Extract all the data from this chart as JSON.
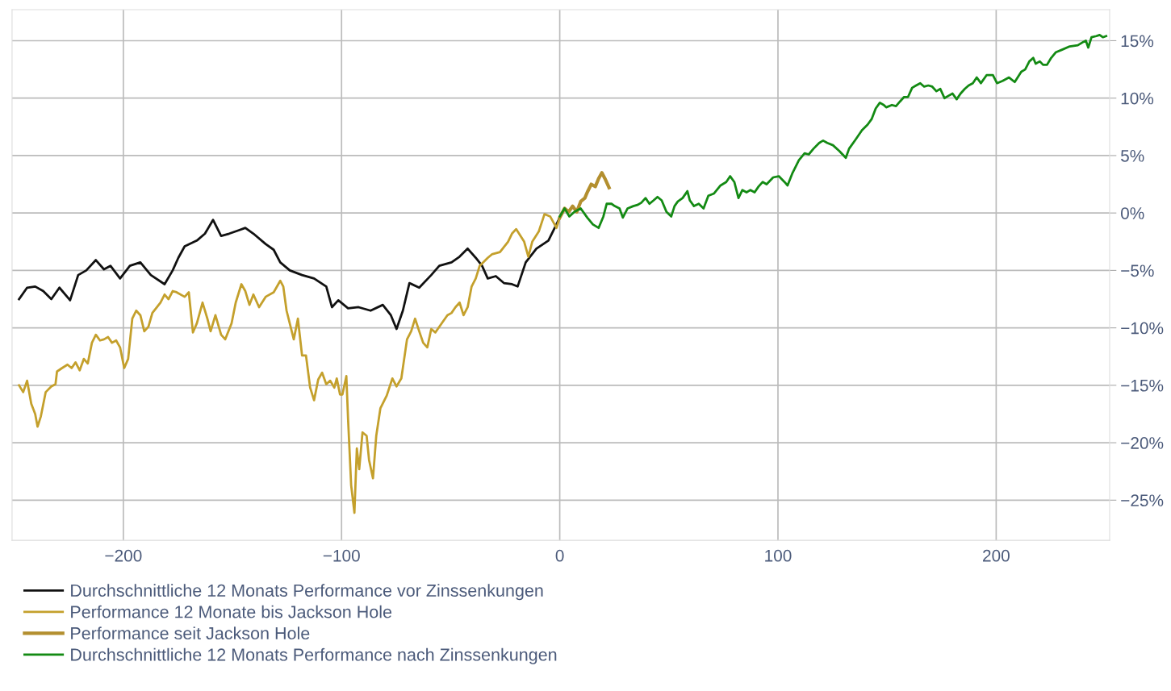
{
  "chart_data": {
    "type": "line",
    "series": [
      {
        "name": "Durchschnittliche 12 Monats Performance vor Zinssenkungen",
        "color": "#111111",
        "x": [
          -247.8,
          -244.1,
          -240.4,
          -236.7,
          -233,
          -229.3,
          -224.4,
          -220.7,
          -217,
          -212.6,
          -208.9,
          -205.9,
          -201.5,
          -197,
          -192.2,
          -187.4,
          -181.1,
          -177.4,
          -174.8,
          -171.9,
          -166.3,
          -162.6,
          -158.9,
          -155.2,
          -151.5,
          -147,
          -144.1,
          -140.4,
          -134.8,
          -131.1,
          -128.1,
          -123.7,
          -118.1,
          -112.6,
          -107,
          -104.4,
          -101.5,
          -97,
          -92.2,
          -86.7,
          -81.1,
          -77.4,
          -74.8,
          -71.9,
          -68.9,
          -64.4,
          -58.9,
          -55.2,
          -49.6,
          -45.9,
          -42.2,
          -38.5,
          -35.6,
          -33,
          -29.3,
          -25.6,
          -21.9,
          -19.3,
          -15.6,
          -10.7,
          -5.2,
          0
        ],
        "values": [
          -7.5,
          -6.5,
          -6.4,
          -6.8,
          -7.5,
          -6.5,
          -7.6,
          -5.4,
          -5.0,
          -4.1,
          -4.9,
          -4.6,
          -5.7,
          -4.6,
          -4.3,
          -5.4,
          -6.2,
          -5.0,
          -3.9,
          -2.9,
          -2.4,
          -1.8,
          -0.6,
          -2.0,
          -1.8,
          -1.5,
          -1.3,
          -1.8,
          -2.7,
          -3.2,
          -4.3,
          -5.0,
          -5.4,
          -5.7,
          -6.4,
          -8.2,
          -7.6,
          -8.3,
          -8.2,
          -8.5,
          -8.0,
          -8.9,
          -10.1,
          -8.5,
          -6.1,
          -6.5,
          -5.4,
          -4.6,
          -4.3,
          -3.8,
          -3.1,
          -3.9,
          -4.6,
          -5.7,
          -5.5,
          -6.1,
          -6.2,
          -6.4,
          -4.3,
          -3.1,
          -2.4,
          -0.4
        ]
      },
      {
        "name": "Performance 12 Monate bis Jackson Hole",
        "color": "#c4a02c",
        "x": [
          -247.8,
          -245.9,
          -244.1,
          -242.2,
          -240.4,
          -239.3,
          -237.8,
          -235.6,
          -233,
          -231.1,
          -230.4,
          -228.1,
          -225.6,
          -223.7,
          -221.9,
          -220,
          -218.1,
          -216.3,
          -214.4,
          -212.6,
          -210.7,
          -208.9,
          -207,
          -205.2,
          -203.3,
          -201.5,
          -199.6,
          -197.8,
          -195.9,
          -194.1,
          -192.2,
          -190.4,
          -188.5,
          -186.7,
          -183,
          -181.1,
          -179.3,
          -177.4,
          -175.6,
          -171.9,
          -170,
          -168.1,
          -166.3,
          -163.7,
          -161.5,
          -160,
          -157.8,
          -155.2,
          -153.3,
          -150.4,
          -148.5,
          -145.9,
          -144.1,
          -142.2,
          -140.4,
          -137.8,
          -134.8,
          -131.1,
          -128.1,
          -126.7,
          -125.2,
          -121.9,
          -120,
          -118.1,
          -116.3,
          -114.4,
          -112.6,
          -110.7,
          -108.9,
          -107,
          -105.2,
          -103.3,
          -102.2,
          -100.7,
          -99.6,
          -97.8,
          -97,
          -95.6,
          -94.1,
          -93,
          -91.9,
          -90.4,
          -88.5,
          -87.4,
          -85.6,
          -84.1,
          -82.2,
          -79.3,
          -76.7,
          -74.8,
          -72.6,
          -70,
          -68.1,
          -66.3,
          -64.4,
          -62.6,
          -60.7,
          -58.9,
          -57,
          -54.1,
          -51.5,
          -49.6,
          -47.8,
          -45.9,
          -44.1,
          -42.2,
          -40.4,
          -38.5,
          -36.7,
          -33,
          -31.1,
          -27.4,
          -23.7,
          -21.9,
          -20,
          -16.3,
          -14.4,
          -12.6,
          -9.6,
          -7,
          -4.4,
          -1.5,
          0
        ],
        "values": [
          -15.0,
          -15.6,
          -14.6,
          -16.6,
          -17.5,
          -18.6,
          -17.7,
          -15.6,
          -15.1,
          -14.9,
          -13.8,
          -13.5,
          -13.2,
          -13.5,
          -13.0,
          -13.7,
          -12.7,
          -13.1,
          -11.3,
          -10.6,
          -11.1,
          -11.0,
          -10.8,
          -11.3,
          -11.1,
          -11.7,
          -13.5,
          -12.7,
          -9.2,
          -8.5,
          -8.9,
          -10.3,
          -9.9,
          -8.7,
          -7.8,
          -7.1,
          -7.5,
          -6.8,
          -6.9,
          -7.3,
          -6.9,
          -10.4,
          -9.6,
          -7.8,
          -9.2,
          -10.3,
          -8.9,
          -10.6,
          -11.0,
          -9.6,
          -7.8,
          -6.2,
          -6.8,
          -8.0,
          -7.1,
          -8.2,
          -7.3,
          -6.9,
          -5.9,
          -6.4,
          -8.5,
          -11.0,
          -9.2,
          -12.4,
          -12.4,
          -15.2,
          -16.3,
          -14.5,
          -13.9,
          -14.9,
          -14.6,
          -15.2,
          -14.4,
          -15.8,
          -15.8,
          -14.2,
          -18.0,
          -23.7,
          -26.1,
          -20.5,
          -22.3,
          -19.1,
          -19.4,
          -21.5,
          -23.1,
          -19.4,
          -17.0,
          -15.9,
          -14.4,
          -15.1,
          -14.4,
          -11.0,
          -10.3,
          -9.2,
          -10.3,
          -11.3,
          -11.7,
          -10.1,
          -10.4,
          -9.6,
          -8.9,
          -8.7,
          -8.2,
          -7.8,
          -8.9,
          -8.2,
          -6.4,
          -5.7,
          -4.6,
          -3.9,
          -3.6,
          -3.4,
          -2.5,
          -1.8,
          -1.4,
          -2.5,
          -3.8,
          -2.5,
          -1.6,
          -0.1,
          -0.3,
          -1.3,
          -0.4
        ]
      },
      {
        "name": "Performance seit Jackson Hole",
        "color": "#b38f2f",
        "x": [
          0,
          2.2,
          4.1,
          5.9,
          7.8,
          9.6,
          11.5,
          12.6,
          14.4,
          16.3,
          17.8,
          19.3,
          20.7,
          22.6
        ],
        "values": [
          -0.4,
          0.4,
          0.1,
          0.6,
          0.1,
          1.0,
          1.3,
          1.8,
          2.5,
          2.3,
          3.0,
          3.5,
          3.0,
          2.2
        ]
      },
      {
        "name": "Durchschnittliche 12 Monats Performance nach Zinssenkungen",
        "color": "#138a13",
        "x": [
          0,
          2.2,
          4.4,
          6.7,
          9.6,
          12.6,
          15.2,
          17.8,
          20,
          21.5,
          23.7,
          25.2,
          27.4,
          28.9,
          31.1,
          33.7,
          35.6,
          37.4,
          39.3,
          41.1,
          43,
          44.8,
          46.7,
          48.9,
          51.1,
          52.6,
          54.1,
          56.3,
          58.5,
          59.6,
          61.5,
          63.7,
          65.9,
          68.1,
          70.7,
          73.7,
          76.3,
          78.1,
          80,
          81.9,
          83.7,
          85.6,
          87.4,
          89.3,
          91.1,
          93,
          94.8,
          97.8,
          100.4,
          103,
          104.4,
          106.7,
          109.6,
          112.2,
          114.1,
          116.3,
          118.9,
          120.7,
          122.6,
          125.2,
          128.1,
          131.1,
          132.6,
          135.6,
          138.5,
          141.1,
          143,
          144.8,
          146.7,
          148.5,
          149.6,
          152.2,
          154.1,
          155.9,
          157.8,
          159.6,
          161.5,
          163.3,
          165.2,
          167,
          168.9,
          170.7,
          172.6,
          174.4,
          176.3,
          178.1,
          180,
          181.9,
          183.7,
          185.6,
          187.4,
          189.3,
          191.1,
          193,
          195.6,
          198.5,
          200.4,
          203,
          205.9,
          208.5,
          211.5,
          213.3,
          215.2,
          217,
          218.1,
          220,
          221.5,
          223.3,
          225.2,
          227.4,
          230,
          233.7,
          237.4,
          240,
          241.1,
          242.2,
          243.7,
          245.9,
          247.4,
          248.9,
          250.4
        ],
        "values": [
          -0.3,
          0.4,
          -0.3,
          0.1,
          0.4,
          -0.4,
          -1.0,
          -1.3,
          -0.3,
          0.8,
          0.8,
          0.6,
          0.4,
          -0.4,
          0.4,
          0.6,
          0.7,
          0.9,
          1.3,
          0.8,
          1.1,
          1.4,
          1.1,
          0.1,
          -0.3,
          0.6,
          1.0,
          1.3,
          1.9,
          1.1,
          0.6,
          0.8,
          0.4,
          1.5,
          1.7,
          2.4,
          2.7,
          3.2,
          2.7,
          1.3,
          2.0,
          1.8,
          2.0,
          1.8,
          2.3,
          2.7,
          2.5,
          3.1,
          3.2,
          2.7,
          2.4,
          3.5,
          4.6,
          5.2,
          5.1,
          5.6,
          6.1,
          6.3,
          6.1,
          5.9,
          5.4,
          4.8,
          5.6,
          6.4,
          7.2,
          7.7,
          8.2,
          9.1,
          9.6,
          9.4,
          9.2,
          9.4,
          9.3,
          9.7,
          10.1,
          10.1,
          10.9,
          11.1,
          11.3,
          11.0,
          11.1,
          11.0,
          10.6,
          10.8,
          10.0,
          10.2,
          10.4,
          9.9,
          10.4,
          10.8,
          11.1,
          11.3,
          11.8,
          11.3,
          12.0,
          12.0,
          11.3,
          11.5,
          11.8,
          11.4,
          12.3,
          12.5,
          13.2,
          13.5,
          13.0,
          13.2,
          12.9,
          12.9,
          13.5,
          14.0,
          14.2,
          14.5,
          14.6,
          14.9,
          15.0,
          14.4,
          15.3,
          15.4,
          15.5,
          15.3,
          15.4
        ]
      }
    ],
    "xlim": [
      -251,
      252
    ],
    "ylim": [
      -28.5,
      17.7
    ],
    "xticks": [
      {
        "value": -200,
        "label": "−200"
      },
      {
        "value": -100,
        "label": "−100"
      },
      0,
      100,
      200
    ],
    "yticks": [
      {
        "value": -25,
        "label": "−25%"
      },
      {
        "value": -20,
        "label": "−20%"
      },
      {
        "value": -15,
        "label": "−15%"
      },
      {
        "value": -10,
        "label": "−10%"
      },
      {
        "value": -5,
        "label": "−5%"
      },
      {
        "value": 0,
        "label": "0%"
      },
      {
        "value": 5,
        "label": "5%"
      },
      {
        "value": 10,
        "label": "10%"
      },
      {
        "value": 15,
        "label": "15%"
      }
    ],
    "grid": true,
    "legend": "bottom",
    "marker": "none",
    "line_style": "solid"
  }
}
